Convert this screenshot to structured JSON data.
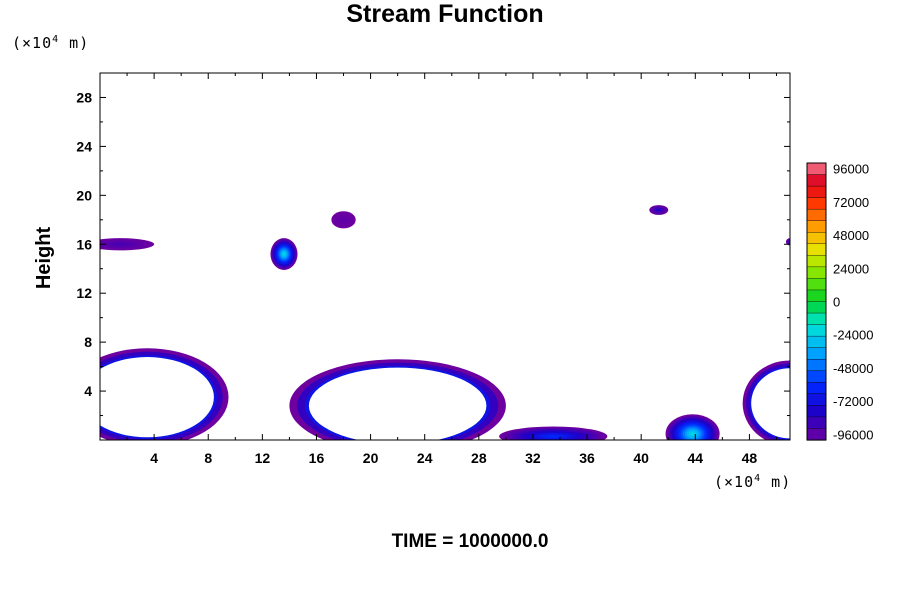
{
  "chart_data": {
    "type": "heatmap",
    "title": "Stream Function",
    "ylabel": "Height",
    "xlabel": "",
    "x_unit": {
      "prefix": "(×10",
      "exponent": "4",
      "suffix": " m)"
    },
    "y_unit": {
      "prefix": "(×10",
      "exponent": "4",
      "suffix": " m)"
    },
    "xlim": [
      0,
      51
    ],
    "ylim": [
      0,
      30
    ],
    "x_ticks": [
      4,
      8,
      12,
      16,
      20,
      24,
      28,
      32,
      36,
      40,
      44,
      48
    ],
    "y_ticks": [
      4,
      8,
      12,
      16,
      20,
      24,
      28
    ],
    "colorbar": {
      "range": [
        -100000,
        100000
      ],
      "labels": [
        "96000",
        "72000",
        "48000",
        "24000",
        "0",
        "-24000",
        "-48000",
        "-72000",
        "-96000"
      ],
      "label_values": [
        96000,
        72000,
        48000,
        24000,
        0,
        -24000,
        -48000,
        -72000,
        -96000
      ],
      "levels": 24
    },
    "features": [
      {
        "name": "lower-left cell",
        "x": 3.5,
        "y": 3.5,
        "rx": 6.0,
        "ry": 4.0,
        "peak": 96000
      },
      {
        "name": "central cell",
        "x": 22.0,
        "y": 2.8,
        "rx": 8.0,
        "ry": 3.8,
        "peak": 96000
      },
      {
        "name": "right edge cell",
        "x": 51.0,
        "y": 3.0,
        "rx": 3.5,
        "ry": 3.5,
        "peak": 96000
      },
      {
        "name": "low ridge",
        "x": 33.5,
        "y": 0.3,
        "rx": 4.0,
        "ry": 0.8,
        "peak": -60000
      },
      {
        "name": "bump at 44",
        "x": 43.8,
        "y": 0.5,
        "rx": 2.0,
        "ry": 1.6,
        "peak": -20000
      },
      {
        "name": "upper-left patch",
        "x": 1.5,
        "y": 16.0,
        "rx": 2.5,
        "ry": 0.5,
        "peak": -90000
      },
      {
        "name": "blob near 13.5",
        "x": 13.6,
        "y": 15.2,
        "rx": 1.0,
        "ry": 1.3,
        "peak": -20000
      },
      {
        "name": "patch near 18",
        "x": 18.0,
        "y": 18.0,
        "rx": 0.9,
        "ry": 0.7,
        "peak": -96000
      },
      {
        "name": "patch near 41",
        "x": 41.3,
        "y": 18.8,
        "rx": 0.7,
        "ry": 0.4,
        "peak": -80000
      },
      {
        "name": "right edge patch",
        "x": 51.0,
        "y": 16.2,
        "rx": 0.3,
        "ry": 0.3,
        "peak": -80000
      }
    ]
  },
  "footer": {
    "time_label": "TIME = 1000000.0"
  }
}
